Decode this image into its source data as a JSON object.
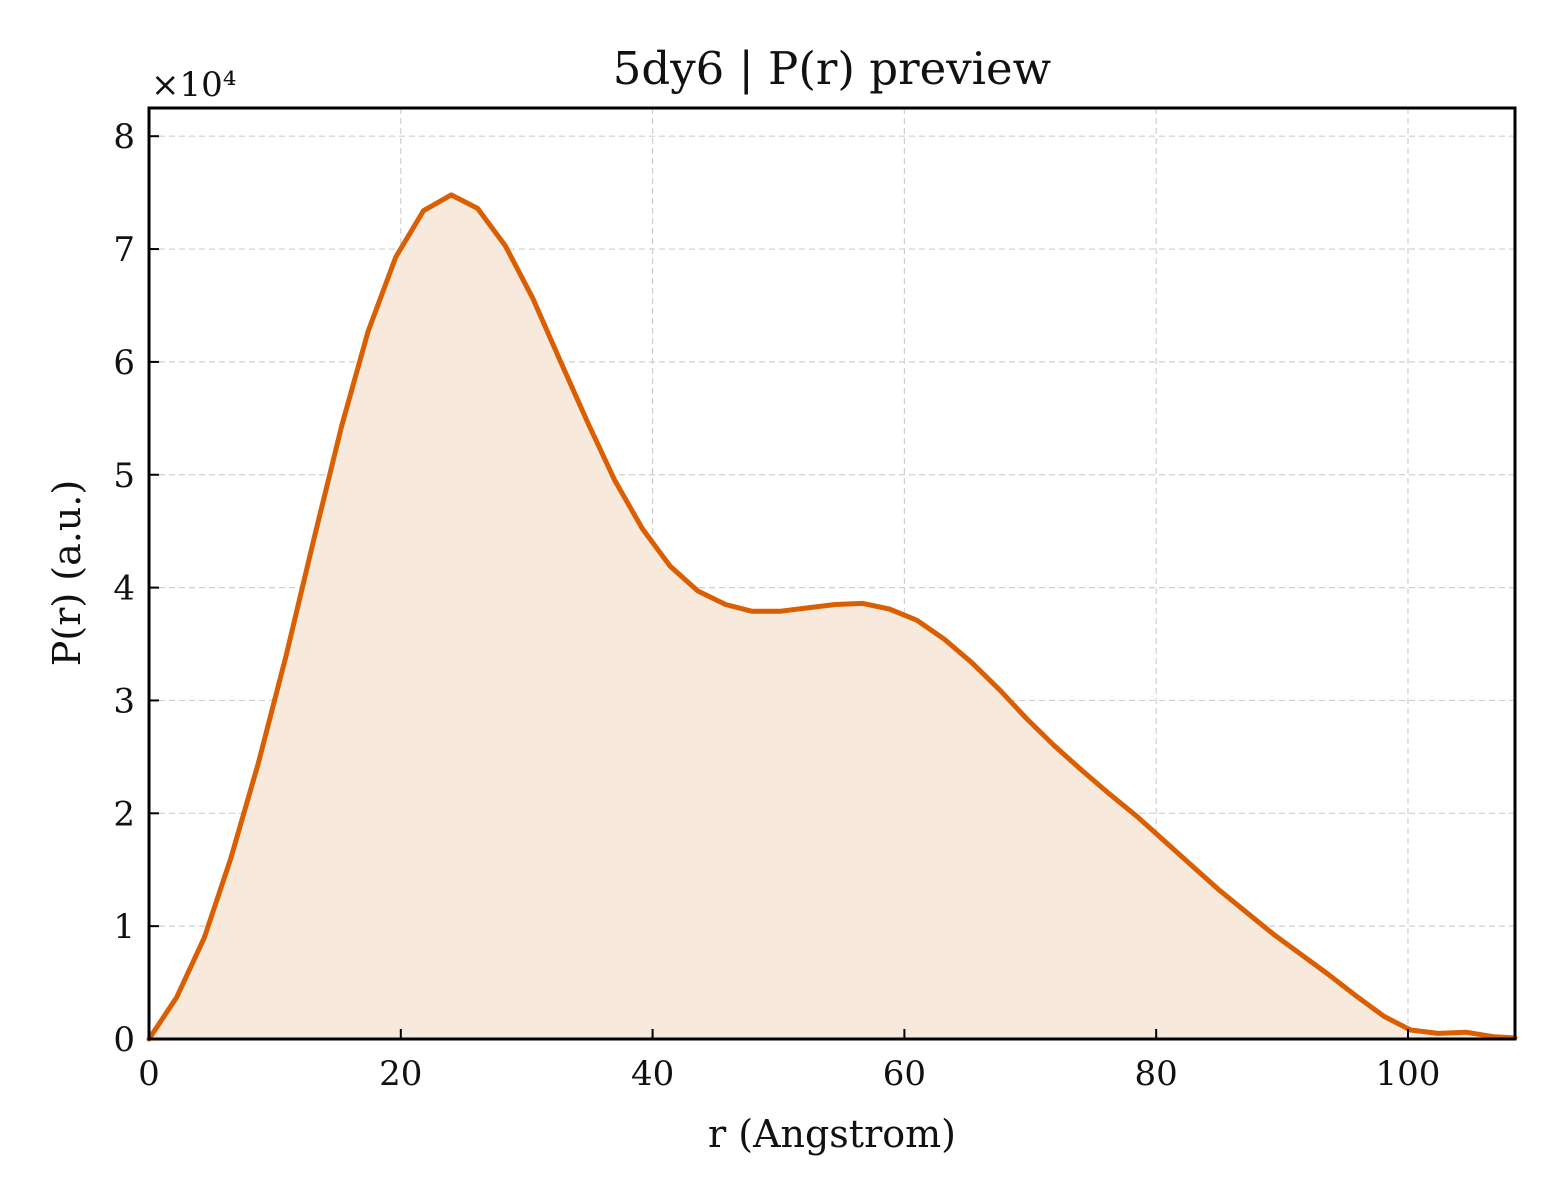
{
  "chart_data": {
    "type": "area",
    "title": "5dy6 | P(r) preview",
    "xlabel": "r (Angstrom)",
    "ylabel": "P(r) (a.u.)",
    "y_multiplier": "×10⁴",
    "xlim": [
      0,
      108.5
    ],
    "ylim": [
      0,
      8.25
    ],
    "xticks": [
      0,
      20,
      40,
      60,
      80,
      100
    ],
    "xtick_labels": [
      "0",
      "20",
      "40",
      "60",
      "80",
      "100"
    ],
    "yticks": [
      0,
      1,
      2,
      3,
      4,
      5,
      6,
      7,
      8
    ],
    "ytick_labels": [
      "0",
      "1",
      "2",
      "3",
      "4",
      "5",
      "6",
      "7",
      "8"
    ],
    "grid": true,
    "line_color": "#d95f02",
    "fill_color": "#f8e9dd",
    "series": [
      {
        "x": [
          0,
          2.2,
          4.4,
          6.5,
          8.7,
          10.9,
          13.1,
          15.3,
          17.4,
          19.6,
          21.8,
          24.0,
          26.1,
          28.3,
          30.5,
          32.7,
          34.9,
          37.0,
          39.2,
          41.4,
          43.6,
          45.8,
          47.9,
          50.1,
          52.3,
          54.5,
          56.7,
          58.8,
          61.0,
          63.2,
          65.4,
          67.6,
          69.7,
          71.9,
          74.1,
          76.3,
          78.5,
          80.6,
          82.8,
          85.0,
          87.2,
          89.3,
          91.5,
          93.7,
          95.9,
          98.1,
          100.2,
          102.4,
          104.6,
          106.8,
          108.5
        ],
        "y": [
          0.0,
          0.37,
          0.9,
          1.6,
          2.45,
          3.4,
          4.43,
          5.43,
          6.27,
          6.93,
          7.34,
          7.48,
          7.36,
          7.03,
          6.56,
          6.0,
          5.45,
          4.95,
          4.52,
          4.19,
          3.97,
          3.85,
          3.79,
          3.79,
          3.82,
          3.85,
          3.86,
          3.81,
          3.71,
          3.54,
          3.33,
          3.09,
          2.84,
          2.6,
          2.38,
          2.17,
          1.97,
          1.76,
          1.54,
          1.32,
          1.12,
          0.93,
          0.75,
          0.57,
          0.38,
          0.2,
          0.08,
          0.05,
          0.06,
          0.02,
          0.01
        ]
      }
    ]
  }
}
